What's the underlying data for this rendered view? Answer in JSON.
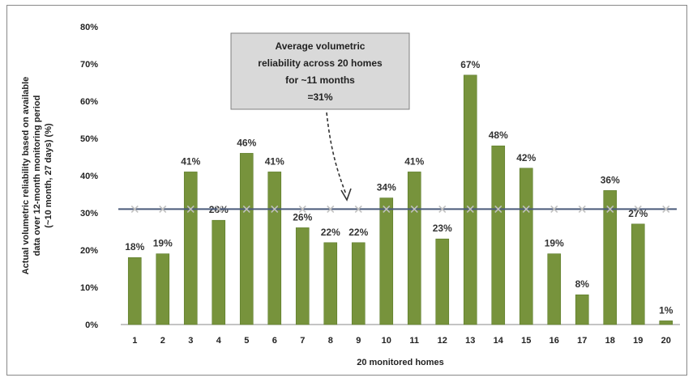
{
  "chart_data": {
    "type": "bar",
    "categories": [
      "1",
      "2",
      "3",
      "4",
      "5",
      "6",
      "7",
      "8",
      "9",
      "10",
      "11",
      "12",
      "13",
      "14",
      "15",
      "16",
      "17",
      "18",
      "19",
      "20"
    ],
    "values": [
      18,
      19,
      41,
      28,
      46,
      41,
      26,
      22,
      22,
      34,
      41,
      23,
      67,
      48,
      42,
      19,
      8,
      36,
      27,
      1
    ],
    "data_labels": [
      "18%",
      "19%",
      "41%",
      "28%",
      "46%",
      "41%",
      "26%",
      "22%",
      "22%",
      "34%",
      "41%",
      "23%",
      "67%",
      "48%",
      "42%",
      "19%",
      "8%",
      "36%",
      "27%",
      "1%"
    ],
    "reference_line_value": 31,
    "xlabel": "20 monitored homes",
    "ylabel_lines": [
      "Actual volumetric reliability based on available",
      "data over 12-month monitoring period",
      "(~10 month, 27 days) (%)"
    ],
    "ylim": [
      0,
      80
    ],
    "y_ticks": [
      0,
      10,
      20,
      30,
      40,
      50,
      60,
      70,
      80
    ],
    "y_tick_labels": [
      "0%",
      "10%",
      "20%",
      "30%",
      "40%",
      "50%",
      "60%",
      "70%",
      "80%"
    ],
    "annotation_lines": [
      "Average volumetric",
      "reliability across 20 homes",
      "for ~11 months",
      "=31%"
    ],
    "colors": {
      "bar": "#77933c",
      "bar_edge": "#5a7a28",
      "average_line": "#4a5a7a",
      "average_marker": "#c0c0c0",
      "callout_fill": "#d9d9d9",
      "callout_border": "#7f7f7f"
    },
    "grid": false
  }
}
